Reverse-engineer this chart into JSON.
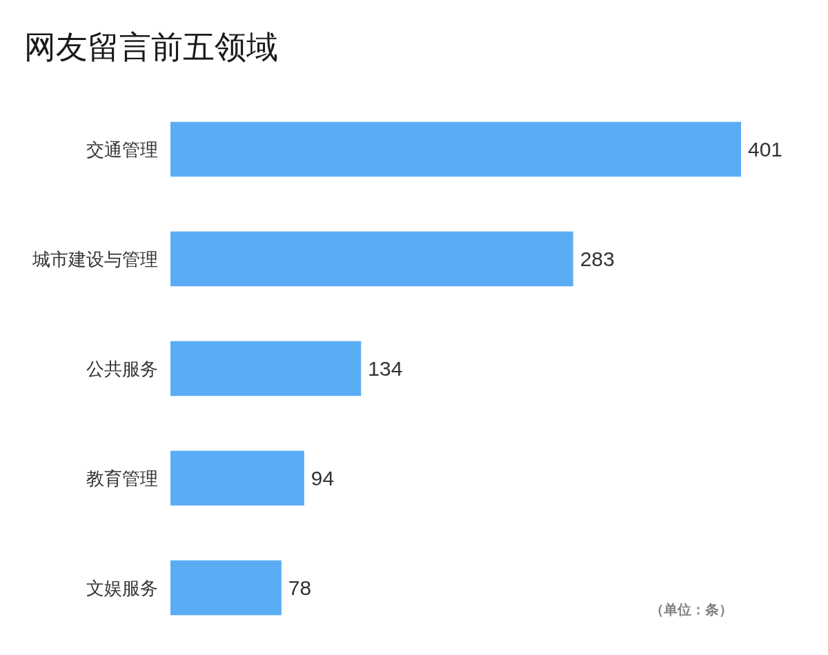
{
  "chart_data": {
    "type": "bar",
    "orientation": "horizontal",
    "title": "网友留言前五领域",
    "categories": [
      "交通管理",
      "城市建设与管理",
      "公共服务",
      "教育管理",
      "文娱服务"
    ],
    "values": [
      401,
      283,
      134,
      94,
      78
    ],
    "color": "#5aadf5",
    "data_labels": true,
    "tick_labels": "y",
    "annotations": [
      "（单位：条）"
    ]
  }
}
